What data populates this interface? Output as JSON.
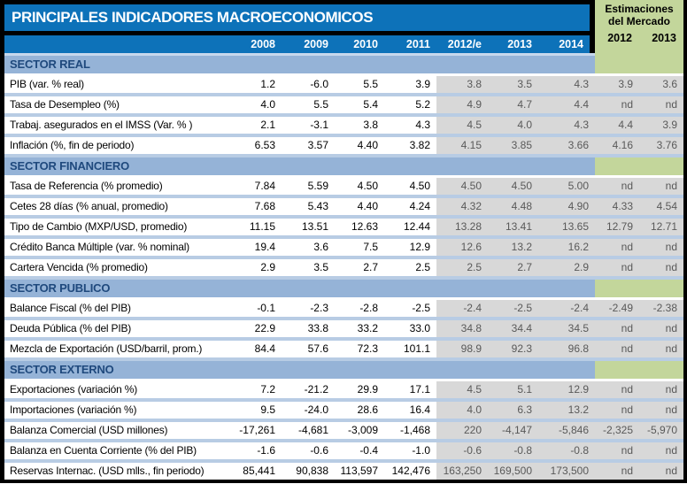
{
  "colors": {
    "header_blue": "#0d72b9",
    "section_blue": "#95b3d7",
    "section_text": "#1f497d",
    "row_separator": "#b8cce4",
    "forecast_bg": "#d8d8d8",
    "forecast_text": "#595959",
    "estimates_green": "#c3d69b"
  },
  "chart_data": {
    "type": "table",
    "title": "PRINCIPALES INDICADORES MACROECONOMICOS",
    "market_estimates": {
      "title_line1": "Estimaciones",
      "title_line2": "del Mercado",
      "years": [
        "2012",
        "2013"
      ]
    },
    "year_columns": [
      "2008",
      "2009",
      "2010",
      "2011",
      "2012/e",
      "2013",
      "2014"
    ],
    "column_note": "values array order: 2008, 2009, 2010, 2011, 2012/e, 2013, 2014, Estimaciones 2012, Estimaciones 2013",
    "sections": [
      {
        "name": "SECTOR REAL",
        "rows": [
          {
            "label": "PIB (var. % real)",
            "values": [
              "1.2",
              "-6.0",
              "5.5",
              "3.9",
              "3.8",
              "3.5",
              "4.3",
              "3.9",
              "3.6"
            ]
          },
          {
            "label": "Tasa de Desempleo (%)",
            "values": [
              "4.0",
              "5.5",
              "5.4",
              "5.2",
              "4.9",
              "4.7",
              "4.4",
              "nd",
              "nd"
            ]
          },
          {
            "label": "Trabaj. asegurados en el IMSS (Var. % )",
            "values": [
              "2.1",
              "-3.1",
              "3.8",
              "4.3",
              "4.5",
              "4.0",
              "4.3",
              "4.4",
              "3.9"
            ]
          },
          {
            "label": "Inflación (%, fin de periodo)",
            "values": [
              "6.53",
              "3.57",
              "4.40",
              "3.82",
              "4.15",
              "3.85",
              "3.66",
              "4.16",
              "3.76"
            ]
          }
        ]
      },
      {
        "name": "SECTOR FINANCIERO",
        "rows": [
          {
            "label": "Tasa de Referencia (% promedio)",
            "values": [
              "7.84",
              "5.59",
              "4.50",
              "4.50",
              "4.50",
              "4.50",
              "5.00",
              "nd",
              "nd"
            ]
          },
          {
            "label": "Cetes 28 días (% anual, promedio)",
            "values": [
              "7.68",
              "5.43",
              "4.40",
              "4.24",
              "4.32",
              "4.48",
              "4.90",
              "4.33",
              "4.54"
            ]
          },
          {
            "label": "Tipo de Cambio (MXP/USD, promedio)",
            "values": [
              "11.15",
              "13.51",
              "12.63",
              "12.44",
              "13.28",
              "13.41",
              "13.65",
              "12.79",
              "12.71"
            ]
          },
          {
            "label": "Crédito Banca Múltiple (var. % nominal)",
            "values": [
              "19.4",
              "3.6",
              "7.5",
              "12.9",
              "12.6",
              "13.2",
              "16.2",
              "nd",
              "nd"
            ]
          },
          {
            "label": "Cartera Vencida (% promedio)",
            "values": [
              "2.9",
              "3.5",
              "2.7",
              "2.5",
              "2.5",
              "2.7",
              "2.9",
              "nd",
              "nd"
            ]
          }
        ]
      },
      {
        "name": "SECTOR PUBLICO",
        "rows": [
          {
            "label": "Balance Fiscal (% del PIB)",
            "values": [
              "-0.1",
              "-2.3",
              "-2.8",
              "-2.5",
              "-2.4",
              "-2.5",
              "-2.4",
              "-2.49",
              "-2.38"
            ]
          },
          {
            "label": "Deuda Pública (% del PIB)",
            "values": [
              "22.9",
              "33.8",
              "33.2",
              "33.0",
              "34.8",
              "34.4",
              "34.5",
              "nd",
              "nd"
            ]
          },
          {
            "label": "Mezcla de Exportación (USD/barril, prom.)",
            "values": [
              "84.4",
              "57.6",
              "72.3",
              "101.1",
              "98.9",
              "92.3",
              "96.8",
              "nd",
              "nd"
            ]
          }
        ]
      },
      {
        "name": "SECTOR EXTERNO",
        "rows": [
          {
            "label": "Exportaciones (variación %)",
            "values": [
              "7.2",
              "-21.2",
              "29.9",
              "17.1",
              "4.5",
              "5.1",
              "12.9",
              "nd",
              "nd"
            ]
          },
          {
            "label": "Importaciones (variación %)",
            "values": [
              "9.5",
              "-24.0",
              "28.6",
              "16.4",
              "4.0",
              "6.3",
              "13.2",
              "nd",
              "nd"
            ]
          },
          {
            "label": "Balanza Comercial (USD millones)",
            "values": [
              "-17,261",
              "-4,681",
              "-3,009",
              "-1,468",
              "220",
              "-4,147",
              "-5,846",
              "-2,325",
              "-5,970"
            ]
          },
          {
            "label": "Balanza en Cuenta Corriente (% del PIB)",
            "values": [
              "-1.6",
              "-0.6",
              "-0.4",
              "-1.0",
              "-0.6",
              "-0.8",
              "-0.8",
              "nd",
              "nd"
            ]
          },
          {
            "label": "Reservas Internac. (USD mlls., fin periodo)",
            "values": [
              "85,441",
              "90,838",
              "113,597",
              "142,476",
              "163,250",
              "169,500",
              "173,500",
              "nd",
              "nd"
            ]
          }
        ]
      }
    ]
  }
}
